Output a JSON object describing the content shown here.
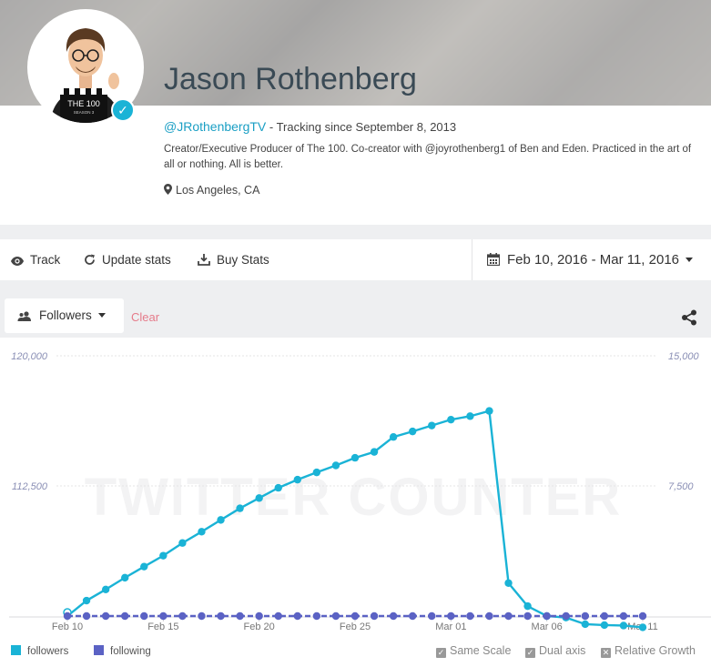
{
  "profile": {
    "name": "Jason Rothenberg",
    "handle": "@JRothenbergTV",
    "tracking": " - Tracking since September 8, 2013",
    "bio": "Creator/Executive Producer of The 100. Co-creator with @joyrothenberg1 of Ben and Eden. Practiced in the art of all or nothing. All is better.",
    "location": "Los Angeles, CA",
    "avatar_text": "THE 100",
    "avatar_subtext": "SEASON 3"
  },
  "toolbar": {
    "track_label": "Track",
    "update_label": "Update stats",
    "buy_label": "Buy Stats",
    "date_range": "Feb 10, 2016 - Mar 11, 2016"
  },
  "controls": {
    "metric_label": "Followers",
    "clear_label": "Clear"
  },
  "legend": {
    "followers": "followers",
    "following": "following"
  },
  "options": {
    "same_scale": "Same Scale",
    "dual_axis": "Dual axis",
    "relative_growth": "Relative Growth"
  },
  "colors": {
    "followers": "#1ab3d6",
    "following": "#5b62c4"
  },
  "chart_data": {
    "type": "line",
    "x": [
      "2016-02-10",
      "2016-02-11",
      "2016-02-12",
      "2016-02-13",
      "2016-02-14",
      "2016-02-15",
      "2016-02-16",
      "2016-02-17",
      "2016-02-18",
      "2016-02-19",
      "2016-02-20",
      "2016-02-21",
      "2016-02-22",
      "2016-02-23",
      "2016-02-24",
      "2016-02-25",
      "2016-02-26",
      "2016-02-27",
      "2016-02-28",
      "2016-02-29",
      "2016-03-01",
      "2016-03-02",
      "2016-03-03",
      "2016-03-04",
      "2016-03-05",
      "2016-03-06",
      "2016-03-07",
      "2016-03-08",
      "2016-03-09",
      "2016-03-10",
      "2016-03-11"
    ],
    "x_tick_labels": [
      "Feb 10",
      "Feb 15",
      "Feb 20",
      "Feb 25",
      "Mar 01",
      "Mar 06",
      "Mar 11"
    ],
    "x_tick_dates": [
      "2016-02-10",
      "2016-02-15",
      "2016-02-20",
      "2016-02-25",
      "2016-03-01",
      "2016-03-06",
      "2016-03-11"
    ],
    "series": [
      {
        "name": "followers",
        "axis": "left",
        "values": [
          105000,
          105890,
          106530,
          107210,
          107850,
          108480,
          109210,
          109860,
          110540,
          111210,
          111800,
          112390,
          112860,
          113280,
          113680,
          114120,
          114460,
          115320,
          115640,
          115980,
          116320,
          116520,
          116820,
          106900,
          105570,
          105000,
          104910,
          104530,
          104480,
          104450,
          104350
        ]
      },
      {
        "name": "following",
        "axis": "right",
        "values": [
          0,
          0,
          0,
          0,
          0,
          0,
          0,
          0,
          0,
          0,
          0,
          0,
          0,
          0,
          0,
          0,
          0,
          0,
          0,
          0,
          0,
          0,
          0,
          0,
          0,
          0,
          0,
          0,
          0,
          0,
          0
        ]
      }
    ],
    "y_left": {
      "ticks": [
        "112,500",
        "120,000"
      ],
      "tick_values": [
        112500,
        120000
      ],
      "range": [
        105000,
        120000
      ]
    },
    "y_right": {
      "ticks": [
        "7,500",
        "15,000"
      ],
      "tick_values": [
        7500,
        15000
      ],
      "range": [
        0,
        15000
      ]
    },
    "watermark": "TWITTER COUNTER"
  }
}
